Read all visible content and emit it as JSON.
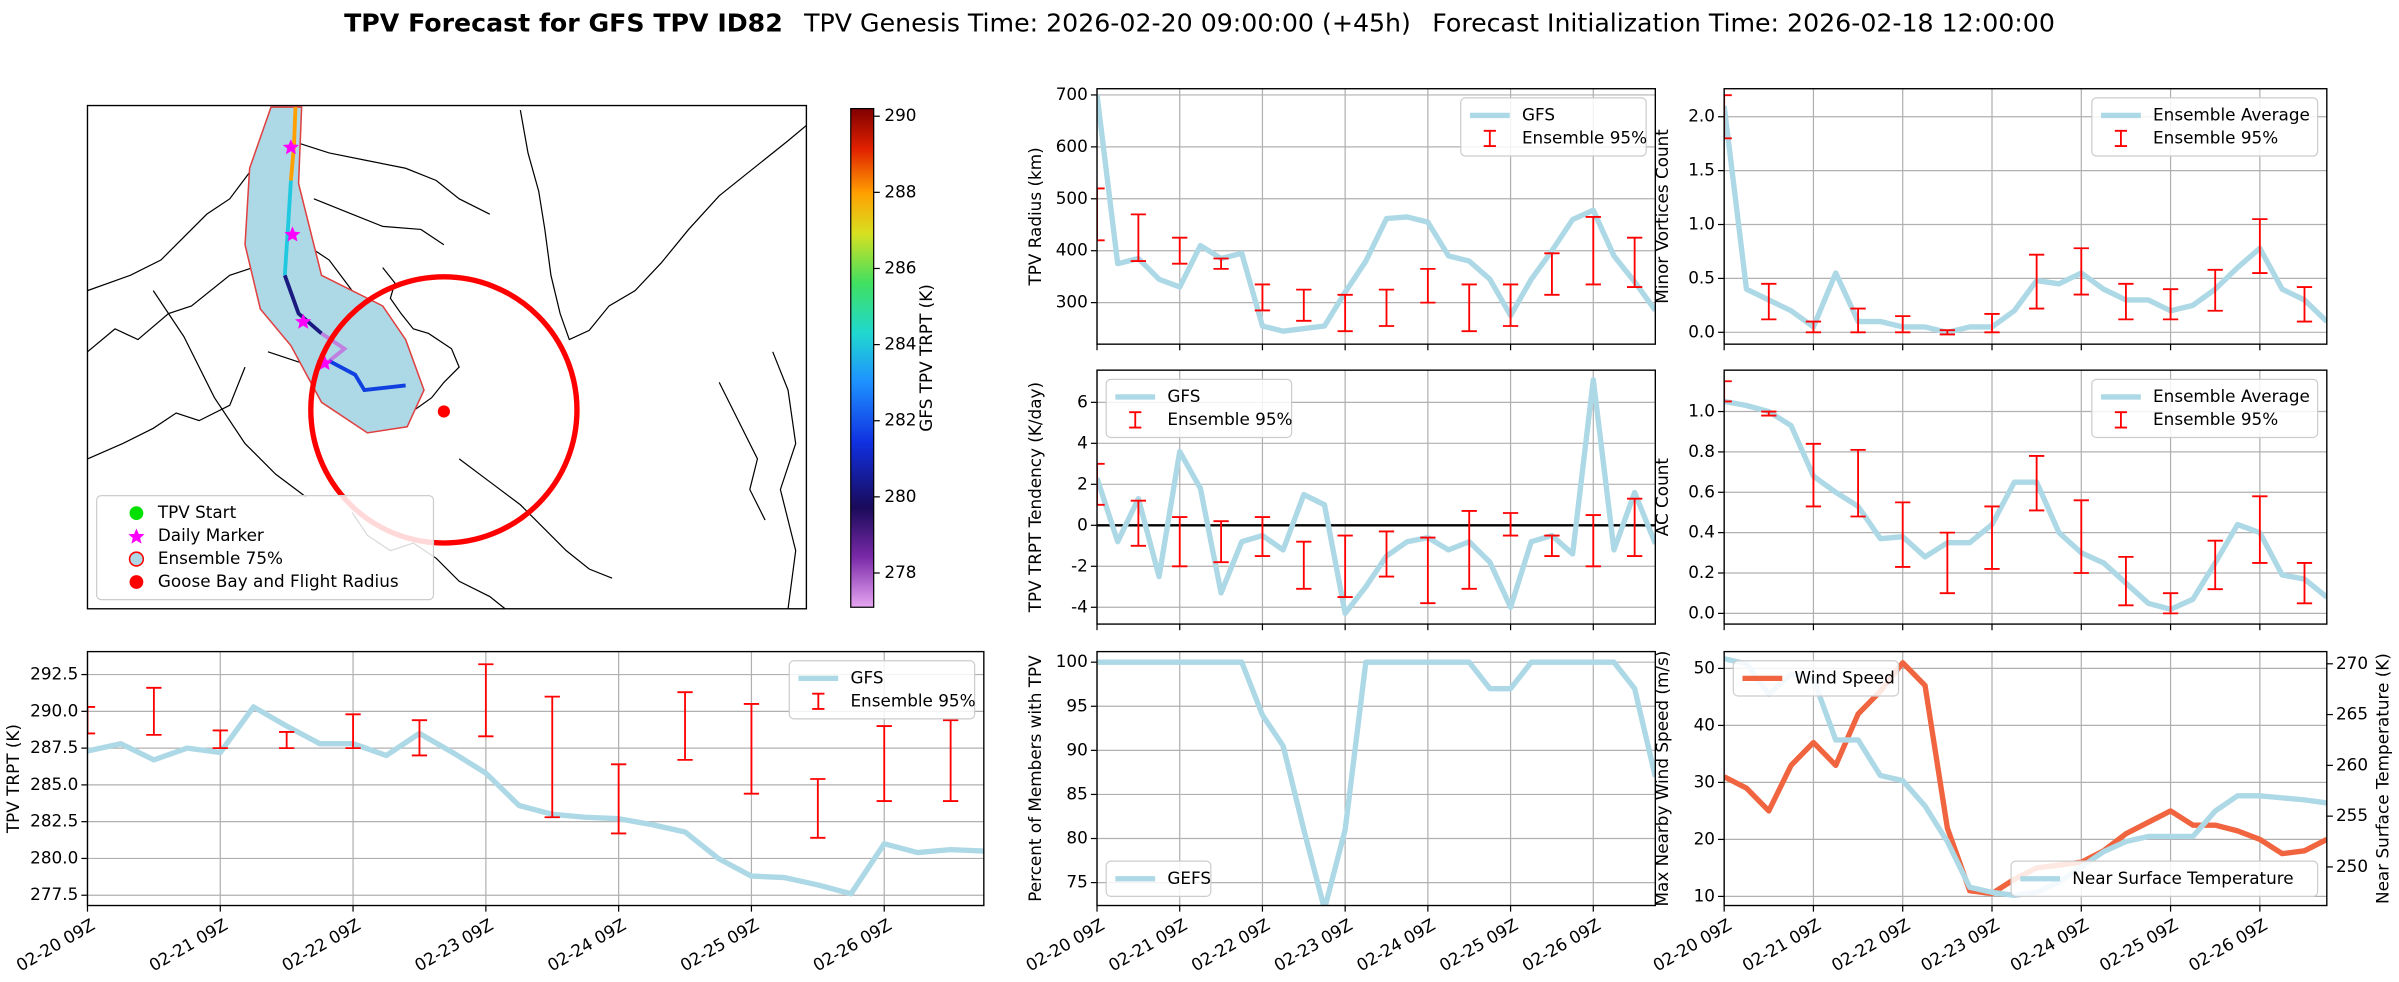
{
  "title": "TPV Forecast for GFS TPV ID82",
  "subtitle": [
    "TPV Genesis Time: 2026-02-20 09:00:00 (+45h)",
    "Forecast Initialization Time: 2026-02-18 12:00:00"
  ],
  "chart_data": [
    {
      "type": "map",
      "legend": "lower left",
      "legend_entries": [
        {
          "name": "TPV Start",
          "color": "#00e000",
          "marker": "circle"
        },
        {
          "name": "Daily Marker",
          "color": "#ff00ff",
          "marker": "star"
        },
        {
          "name": "Ensemble 75%",
          "color": "#add8e6",
          "edgecolor": "red",
          "marker": "circle"
        },
        {
          "name": "Goose Bay and Flight Radius",
          "color": "red",
          "marker": "circle"
        }
      ],
      "colorbar": {
        "label": "GFS TPV TRPT (K)",
        "lim": [
          277.1,
          290.2
        ],
        "ticks": [
          278,
          280,
          282,
          284,
          286,
          288,
          290
        ]
      }
    },
    {
      "type": "line",
      "ylabel": "TPV Radius (km)",
      "x": [
        "02-20 09Z",
        "02-20 15Z",
        "02-20 21Z",
        "02-21 03Z",
        "02-21 09Z",
        "02-21 15Z",
        "02-21 21Z",
        "02-22 03Z",
        "02-22 09Z",
        "02-22 15Z",
        "02-22 21Z",
        "02-23 03Z",
        "02-23 09Z",
        "02-23 15Z",
        "02-23 21Z",
        "02-24 03Z",
        "02-24 09Z",
        "02-24 15Z",
        "02-24 21Z",
        "02-25 03Z",
        "02-25 09Z",
        "02-25 15Z",
        "02-25 21Z",
        "02-26 03Z",
        "02-26 09Z",
        "02-26 15Z",
        "02-26 21Z",
        "02-27 03Z"
      ],
      "xlim": [
        "02-20 09Z",
        "02-27 03Z"
      ],
      "xticks": [
        "02-20 09Z",
        "02-21 09Z",
        "02-22 09Z",
        "02-23 09Z",
        "02-24 09Z",
        "02-25 09Z",
        "02-26 09Z"
      ],
      "show_xtick_labels": false,
      "ylim": [
        220,
        712
      ],
      "yticks": [
        300,
        400,
        500,
        600,
        700
      ],
      "grid": true,
      "legend": "upper right",
      "series": [
        {
          "name": "GFS",
          "color": "#add8e6",
          "values": [
            700,
            375,
            385,
            345,
            330,
            410,
            385,
            395,
            255,
            245,
            250,
            255,
            320,
            380,
            462,
            465,
            455,
            390,
            380,
            345,
            275,
            345,
            400,
            460,
            478,
            390,
            340,
            285
          ]
        }
      ],
      "errorbars": {
        "name": "Ensemble 95%",
        "color": "red",
        "x": [
          "02-20 09Z",
          "02-20 21Z",
          "02-21 09Z",
          "02-21 21Z",
          "02-22 09Z",
          "02-22 21Z",
          "02-23 09Z",
          "02-23 21Z",
          "02-24 09Z",
          "02-24 21Z",
          "02-25 09Z",
          "02-25 21Z",
          "02-26 09Z",
          "02-26 21Z"
        ],
        "low": [
          420,
          380,
          375,
          365,
          285,
          265,
          245,
          255,
          300,
          245,
          255,
          315,
          335,
          330
        ],
        "high": [
          520,
          470,
          425,
          385,
          335,
          325,
          315,
          325,
          365,
          335,
          335,
          395,
          465,
          425
        ]
      }
    },
    {
      "type": "line",
      "ylabel": "Minor Vortices Count",
      "x": [
        "02-20 09Z",
        "02-20 15Z",
        "02-20 21Z",
        "02-21 03Z",
        "02-21 09Z",
        "02-21 15Z",
        "02-21 21Z",
        "02-22 03Z",
        "02-22 09Z",
        "02-22 15Z",
        "02-22 21Z",
        "02-23 03Z",
        "02-23 09Z",
        "02-23 15Z",
        "02-23 21Z",
        "02-24 03Z",
        "02-24 09Z",
        "02-24 15Z",
        "02-24 21Z",
        "02-25 03Z",
        "02-25 09Z",
        "02-25 15Z",
        "02-25 21Z",
        "02-26 03Z",
        "02-26 09Z",
        "02-26 15Z",
        "02-26 21Z",
        "02-27 03Z"
      ],
      "xlim": [
        "02-20 09Z",
        "02-27 03Z"
      ],
      "xticks": [
        "02-20 09Z",
        "02-21 09Z",
        "02-22 09Z",
        "02-23 09Z",
        "02-24 09Z",
        "02-25 09Z",
        "02-26 09Z"
      ],
      "show_xtick_labels": false,
      "ylim": [
        -0.11,
        2.26
      ],
      "yticks": [
        {
          "value": 0,
          "label": "0.0"
        },
        {
          "value": 0.5,
          "label": "0.5"
        },
        {
          "value": 1,
          "label": "1.0"
        },
        {
          "value": 1.5,
          "label": "1.5"
        },
        {
          "value": 2,
          "label": "2.0"
        }
      ],
      "grid": true,
      "legend": "upper right",
      "series": [
        {
          "name": "Ensemble Average",
          "color": "#add8e6",
          "values": [
            2.1,
            0.4,
            0.3,
            0.2,
            0.05,
            0.55,
            0.1,
            0.1,
            0.05,
            0.05,
            0.0,
            0.05,
            0.05,
            0.2,
            0.48,
            0.45,
            0.55,
            0.4,
            0.3,
            0.3,
            0.2,
            0.25,
            0.4,
            0.6,
            0.78,
            0.4,
            0.3,
            0.1
          ]
        }
      ],
      "errorbars": {
        "name": "Ensemble 95%",
        "color": "red",
        "x": [
          "02-20 09Z",
          "02-20 21Z",
          "02-21 09Z",
          "02-21 21Z",
          "02-22 09Z",
          "02-22 21Z",
          "02-23 09Z",
          "02-23 21Z",
          "02-24 09Z",
          "02-24 21Z",
          "02-25 09Z",
          "02-25 21Z",
          "02-26 09Z",
          "02-26 21Z"
        ],
        "low": [
          1.8,
          0.12,
          0.0,
          0.0,
          0.0,
          -0.02,
          0.0,
          0.22,
          0.35,
          0.12,
          0.12,
          0.2,
          0.55,
          0.1
        ],
        "high": [
          2.2,
          0.45,
          0.1,
          0.22,
          0.15,
          0.02,
          0.17,
          0.72,
          0.78,
          0.45,
          0.4,
          0.58,
          1.05,
          0.42
        ]
      }
    },
    {
      "type": "line",
      "ylabel": "TPV TRPT Tendency (K/day)",
      "x": [
        "02-20 09Z",
        "02-20 15Z",
        "02-20 21Z",
        "02-21 03Z",
        "02-21 09Z",
        "02-21 15Z",
        "02-21 21Z",
        "02-22 03Z",
        "02-22 09Z",
        "02-22 15Z",
        "02-22 21Z",
        "02-23 03Z",
        "02-23 09Z",
        "02-23 15Z",
        "02-23 21Z",
        "02-24 03Z",
        "02-24 09Z",
        "02-24 15Z",
        "02-24 21Z",
        "02-25 03Z",
        "02-25 09Z",
        "02-25 15Z",
        "02-25 21Z",
        "02-26 03Z",
        "02-26 09Z",
        "02-26 15Z",
        "02-26 21Z",
        "02-27 03Z"
      ],
      "xlim": [
        "02-20 09Z",
        "02-27 03Z"
      ],
      "xticks": [
        "02-20 09Z",
        "02-21 09Z",
        "02-22 09Z",
        "02-23 09Z",
        "02-24 09Z",
        "02-25 09Z",
        "02-26 09Z"
      ],
      "show_xtick_labels": false,
      "ylim": [
        -4.82,
        7.57
      ],
      "yticks": [
        -4,
        -2,
        0,
        2,
        4,
        6
      ],
      "grid": true,
      "legend": "upper left",
      "hline": 0,
      "series": [
        {
          "name": "GFS",
          "color": "#add8e6",
          "values": [
            2.3,
            -0.8,
            1.3,
            -2.5,
            3.6,
            1.8,
            -3.3,
            -0.8,
            -0.5,
            -1.2,
            1.5,
            1.0,
            -4.3,
            -3.0,
            -1.5,
            -0.8,
            -0.6,
            -1.2,
            -0.8,
            -1.8,
            -4.0,
            -0.8,
            -0.5,
            -1.4,
            7.1,
            -1.2,
            1.6,
            -0.9
          ]
        }
      ],
      "errorbars": {
        "name": "Ensemble 95%",
        "color": "red",
        "x": [
          "02-20 09Z",
          "02-20 21Z",
          "02-21 09Z",
          "02-21 21Z",
          "02-22 09Z",
          "02-22 21Z",
          "02-23 09Z",
          "02-23 21Z",
          "02-24 09Z",
          "02-24 21Z",
          "02-25 09Z",
          "02-25 21Z",
          "02-26 09Z",
          "02-26 21Z"
        ],
        "low": [
          1,
          -1,
          -2,
          -1.8,
          -1.5,
          -3.1,
          -3.5,
          -2.5,
          -3.8,
          -3.1,
          -0.5,
          -1.5,
          -2,
          -1.5
        ],
        "high": [
          3,
          1.2,
          0.4,
          0.2,
          0.4,
          -0.8,
          -0.5,
          -0.3,
          -0.6,
          0.7,
          0.6,
          -0.5,
          0.5,
          1.3
        ]
      }
    },
    {
      "type": "line",
      "ylabel": "AC Count",
      "x": [
        "02-20 09Z",
        "02-20 15Z",
        "02-20 21Z",
        "02-21 03Z",
        "02-21 09Z",
        "02-21 15Z",
        "02-21 21Z",
        "02-22 03Z",
        "02-22 09Z",
        "02-22 15Z",
        "02-22 21Z",
        "02-23 03Z",
        "02-23 09Z",
        "02-23 15Z",
        "02-23 21Z",
        "02-24 03Z",
        "02-24 09Z",
        "02-24 15Z",
        "02-24 21Z",
        "02-25 03Z",
        "02-25 09Z",
        "02-25 15Z",
        "02-25 21Z",
        "02-26 03Z",
        "02-26 09Z",
        "02-26 15Z",
        "02-26 21Z",
        "02-27 03Z"
      ],
      "xlim": [
        "02-20 09Z",
        "02-27 03Z"
      ],
      "xticks": [
        "02-20 09Z",
        "02-21 09Z",
        "02-22 09Z",
        "02-23 09Z",
        "02-24 09Z",
        "02-25 09Z",
        "02-26 09Z"
      ],
      "show_xtick_labels": false,
      "ylim": [
        -0.053,
        1.205
      ],
      "yticks": [
        {
          "value": 0,
          "label": "0.0"
        },
        {
          "value": 0.2,
          "label": "0.2"
        },
        {
          "value": 0.4,
          "label": "0.4"
        },
        {
          "value": 0.6,
          "label": "0.6"
        },
        {
          "value": 0.8,
          "label": "0.8"
        },
        {
          "value": 1,
          "label": "1.0"
        }
      ],
      "grid": true,
      "legend": "upper right",
      "series": [
        {
          "name": "Ensemble Average",
          "color": "#add8e6",
          "values": [
            1.05,
            1.03,
            1.0,
            0.93,
            0.68,
            0.6,
            0.53,
            0.37,
            0.38,
            0.28,
            0.35,
            0.35,
            0.44,
            0.65,
            0.65,
            0.4,
            0.3,
            0.25,
            0.15,
            0.05,
            0.02,
            0.07,
            0.25,
            0.44,
            0.4,
            0.19,
            0.17,
            0.08
          ]
        }
      ],
      "errorbars": {
        "name": "Ensemble 95%",
        "color": "red",
        "x": [
          "02-20 09Z",
          "02-20 21Z",
          "02-21 09Z",
          "02-21 21Z",
          "02-22 09Z",
          "02-22 21Z",
          "02-23 09Z",
          "02-23 21Z",
          "02-24 09Z",
          "02-24 21Z",
          "02-25 09Z",
          "02-25 21Z",
          "02-26 09Z",
          "02-26 21Z"
        ],
        "low": [
          1.05,
          0.98,
          0.53,
          0.48,
          0.23,
          0.1,
          0.22,
          0.51,
          0.2,
          0.04,
          0.0,
          0.12,
          0.25,
          0.05
        ],
        "high": [
          1.15,
          1.0,
          0.84,
          0.81,
          0.55,
          0.4,
          0.53,
          0.78,
          0.56,
          0.28,
          0.1,
          0.36,
          0.58,
          0.25
        ]
      }
    },
    {
      "type": "line",
      "ylabel": "TPV TRPT (K)",
      "x": [
        "02-20 09Z",
        "02-20 15Z",
        "02-20 21Z",
        "02-21 03Z",
        "02-21 09Z",
        "02-21 15Z",
        "02-21 21Z",
        "02-22 03Z",
        "02-22 09Z",
        "02-22 15Z",
        "02-22 21Z",
        "02-23 03Z",
        "02-23 09Z",
        "02-23 15Z",
        "02-23 21Z",
        "02-24 03Z",
        "02-24 09Z",
        "02-24 15Z",
        "02-24 21Z",
        "02-25 03Z",
        "02-25 09Z",
        "02-25 15Z",
        "02-25 21Z",
        "02-26 03Z",
        "02-26 09Z",
        "02-26 15Z",
        "02-26 21Z",
        "02-27 03Z"
      ],
      "xlim": [
        "02-20 09Z",
        "02-27 03Z"
      ],
      "xticks": [
        "02-20 09Z",
        "02-21 09Z",
        "02-22 09Z",
        "02-23 09Z",
        "02-24 09Z",
        "02-25 09Z",
        "02-26 09Z"
      ],
      "show_xtick_labels": true,
      "ylim": [
        276.8,
        294.06
      ],
      "yticks": [
        277.5,
        {
          "value": 280,
          "label": "280.0"
        },
        282.5,
        {
          "value": 285,
          "label": "285.0"
        },
        287.5,
        {
          "value": 290,
          "label": "290.0"
        },
        292.5
      ],
      "grid": true,
      "legend": "upper right",
      "series": [
        {
          "name": "GFS",
          "color": "#add8e6",
          "values": [
            287.3,
            287.8,
            286.7,
            287.5,
            287.2,
            290.3,
            289.0,
            287.8,
            287.8,
            287.0,
            288.5,
            287.2,
            285.8,
            283.6,
            283.0,
            282.8,
            282.7,
            282.3,
            281.8,
            280.0,
            278.8,
            278.7,
            278.2,
            277.6,
            281.0,
            280.4,
            280.6,
            280.5
          ]
        }
      ],
      "errorbars": {
        "name": "Ensemble 95%",
        "color": "red",
        "x": [
          "02-20 09Z",
          "02-20 21Z",
          "02-21 09Z",
          "02-21 21Z",
          "02-22 09Z",
          "02-22 21Z",
          "02-23 09Z",
          "02-23 21Z",
          "02-24 09Z",
          "02-24 21Z",
          "02-25 09Z",
          "02-25 21Z",
          "02-26 09Z",
          "02-26 21Z"
        ],
        "low": [
          288.5,
          288.4,
          287.5,
          287.5,
          287.5,
          287.0,
          288.3,
          282.8,
          281.7,
          286.7,
          284.4,
          281.4,
          283.9,
          283.9
        ],
        "high": [
          290.3,
          291.6,
          288.7,
          288.6,
          289.8,
          289.4,
          293.2,
          291.0,
          286.4,
          291.3,
          290.5,
          285.4,
          289.0,
          289.4
        ]
      }
    },
    {
      "type": "line",
      "ylabel": "Percent of Members with TPV",
      "x": [
        "02-20 09Z",
        "02-20 15Z",
        "02-20 21Z",
        "02-21 03Z",
        "02-21 09Z",
        "02-21 15Z",
        "02-21 21Z",
        "02-22 03Z",
        "02-22 09Z",
        "02-22 15Z",
        "02-22 21Z",
        "02-23 03Z",
        "02-23 09Z",
        "02-23 15Z",
        "02-23 21Z",
        "02-24 03Z",
        "02-24 09Z",
        "02-24 15Z",
        "02-24 21Z",
        "02-25 03Z",
        "02-25 09Z",
        "02-25 15Z",
        "02-25 21Z",
        "02-26 03Z",
        "02-26 09Z",
        "02-26 15Z",
        "02-26 21Z",
        "02-27 03Z"
      ],
      "xlim": [
        "02-20 09Z",
        "02-27 03Z"
      ],
      "xticks": [
        "02-20 09Z",
        "02-21 09Z",
        "02-22 09Z",
        "02-23 09Z",
        "02-24 09Z",
        "02-25 09Z",
        "02-26 09Z"
      ],
      "show_xtick_labels": true,
      "ylim": [
        72.4,
        101.2
      ],
      "yticks": [
        75,
        80,
        85,
        90,
        95,
        100
      ],
      "grid": true,
      "legend": "lower left",
      "series": [
        {
          "name": "GEFS",
          "color": "#add8e6",
          "values": [
            100,
            100,
            100,
            100,
            100,
            100,
            100,
            100,
            94,
            90.5,
            81,
            72,
            81,
            100,
            100,
            100,
            100,
            100,
            100,
            97,
            97,
            100,
            100,
            100,
            100,
            100,
            97,
            87
          ]
        }
      ]
    },
    {
      "type": "line",
      "ylabel": "Max Nearby Wind Speed (m/s)",
      "ylabel_color": "#f0643f",
      "y2label": "Near Surface Temperature (K)",
      "y2label_color": "royalblue",
      "x": [
        "02-20 09Z",
        "02-20 15Z",
        "02-20 21Z",
        "02-21 03Z",
        "02-21 09Z",
        "02-21 15Z",
        "02-21 21Z",
        "02-22 03Z",
        "02-22 09Z",
        "02-22 15Z",
        "02-22 21Z",
        "02-23 03Z",
        "02-23 09Z",
        "02-23 15Z",
        "02-23 21Z",
        "02-24 03Z",
        "02-24 09Z",
        "02-24 15Z",
        "02-24 21Z",
        "02-25 03Z",
        "02-25 09Z",
        "02-25 15Z",
        "02-25 21Z",
        "02-26 03Z",
        "02-26 09Z",
        "02-26 15Z",
        "02-26 21Z",
        "02-27 03Z"
      ],
      "xlim": [
        "02-20 09Z",
        "02-27 03Z"
      ],
      "xticks": [
        "02-20 09Z",
        "02-21 09Z",
        "02-22 09Z",
        "02-23 09Z",
        "02-24 09Z",
        "02-25 09Z",
        "02-26 09Z"
      ],
      "show_xtick_labels": true,
      "ylim": [
        8.4,
        52.95
      ],
      "yticks": [
        10,
        20,
        30,
        40,
        50
      ],
      "y2lim": [
        246.2,
        271.2
      ],
      "y2ticks": [
        250,
        255,
        260,
        265,
        270
      ],
      "grid": true,
      "legend": "upper left",
      "y2legend": "lower right",
      "series": [
        {
          "name": "Wind Speed",
          "color": "#f0643f",
          "values": [
            31,
            29,
            25,
            33,
            37,
            33,
            42,
            46,
            51,
            47,
            22,
            11,
            10.5,
            13,
            15,
            15.5,
            16,
            18,
            21,
            23,
            25,
            22.5,
            22.5,
            21.5,
            20,
            17.5,
            18,
            20
          ]
        },
        {
          "name": "Near Surface Temperature",
          "color": "#add8e6",
          "axis": "y2",
          "values": [
            270.5,
            270,
            267,
            269,
            268.5,
            262.5,
            262.5,
            259,
            258.5,
            256,
            252.5,
            248,
            247.5,
            247.2,
            247.5,
            248.5,
            250,
            251.5,
            252.5,
            253,
            253,
            253,
            255.5,
            257,
            257,
            256.8,
            256.6,
            256.3
          ]
        }
      ]
    }
  ]
}
